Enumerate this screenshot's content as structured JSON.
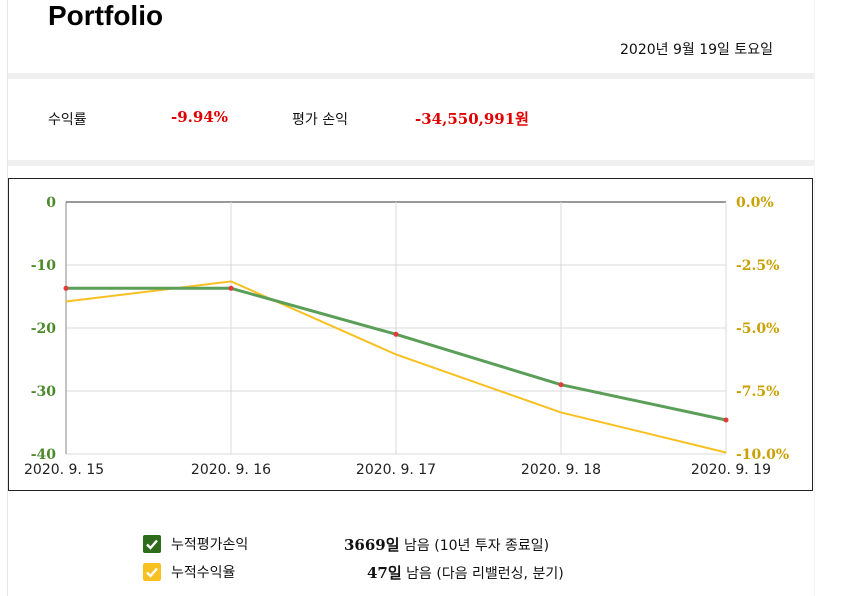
{
  "header": {
    "title": "Portfolio",
    "date": "2020년 9월 19일 토요일"
  },
  "stats": {
    "return_label": "수익률",
    "return_value": "-9.94%",
    "pnl_label": "평가 손익",
    "pnl_value": "-34,550,991원"
  },
  "chart_data": {
    "type": "line",
    "title": "",
    "xlabel": "",
    "ylabel": "",
    "x": [
      "2020. 9. 15",
      "2020. 9. 16",
      "2020. 9. 17",
      "2020. 9. 18",
      "2020. 9. 19"
    ],
    "y_left": {
      "range": [
        -40,
        0
      ],
      "ticks": [
        "0",
        "-10",
        "-20",
        "-30",
        "-40"
      ],
      "color": "#4a8a2a"
    },
    "y_right": {
      "range": [
        -10,
        0
      ],
      "ticks": [
        "0.0%",
        "-2.5%",
        "-5.0%",
        "-7.5%",
        "-10.0%"
      ],
      "color": "#c8a000"
    },
    "grid": true,
    "series": [
      {
        "axis": "left",
        "color": "#5a9e58",
        "values": [
          -13.7,
          -13.7,
          -21.0,
          -29.0,
          -34.6
        ]
      },
      {
        "axis": "right",
        "color": "#f8c020",
        "values": [
          -3.95,
          -3.15,
          -6.05,
          -8.35,
          -9.94
        ]
      }
    ]
  },
  "legend": {
    "items": [
      {
        "label": "누적평가손익",
        "color": "#2e6b1a"
      },
      {
        "label": "누적수익율",
        "color": "#f8c020"
      }
    ]
  },
  "info": {
    "days_left": "3669일",
    "days_left_text": "남음 (10년 투자 종료일)",
    "rebalance_days": "47일",
    "rebalance_text": "남음 (다음 리밸런싱, 분기)"
  }
}
